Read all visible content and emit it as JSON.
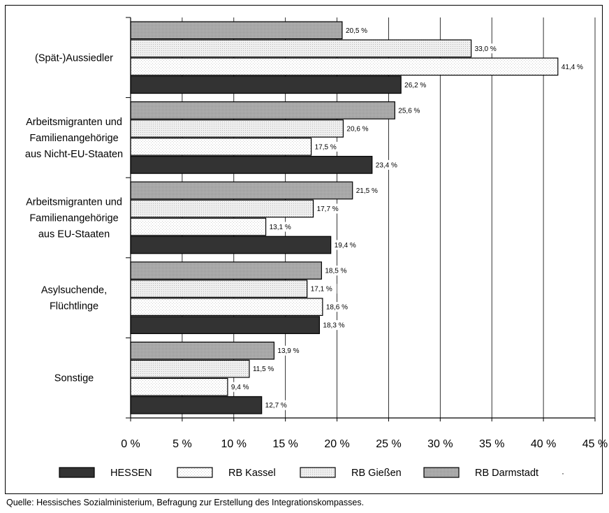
{
  "source_note": "Quelle: Hessisches Sozialministerium, Befragung zur Erstellung des Integrationskompasses.",
  "legend_stray_mark": "·",
  "colors": {
    "HESSEN": "#333333",
    "RB Kassel": "#ffffff",
    "RB Gießen": "#e6e6e6",
    "RB Darmstadt": "#a6a6a6"
  },
  "chart_data": {
    "type": "bar",
    "orientation": "horizontal",
    "title": "",
    "xlabel": "",
    "ylabel": "",
    "xlim": [
      0,
      45
    ],
    "xticks": [
      0,
      5,
      10,
      15,
      20,
      25,
      30,
      35,
      40,
      45
    ],
    "xtick_labels": [
      "0 %",
      "5 %",
      "10 %",
      "15 %",
      "20 %",
      "25 %",
      "30 %",
      "35 %",
      "40 %",
      "45 %"
    ],
    "grid": true,
    "legend_position": "bottom",
    "legend_order": [
      "HESSEN",
      "RB Kassel",
      "RB Gießen",
      "RB Darmstadt"
    ],
    "categories": [
      [
        "(Spät-)Aussiedler"
      ],
      [
        "Arbeitsmigranten und",
        "Familienangehörige",
        "aus Nicht-EU-Staaten"
      ],
      [
        "Arbeitsmigranten und",
        "Familienangehörige",
        "aus EU-Staaten"
      ],
      [
        "Asylsuchende,",
        "Flüchtlinge"
      ],
      [
        "Sonstige"
      ]
    ],
    "series": [
      {
        "name": "RB Darmstadt",
        "values": [
          20.5,
          25.6,
          21.5,
          18.5,
          13.9
        ],
        "labels": [
          "20,5 %",
          "25,6 %",
          "21,5 %",
          "18,5 %",
          "13,9 %"
        ]
      },
      {
        "name": "RB Gießen",
        "values": [
          33.0,
          20.6,
          17.7,
          17.1,
          11.5
        ],
        "labels": [
          "33,0 %",
          "20,6 %",
          "17,7 %",
          "17,1 %",
          "11,5 %"
        ]
      },
      {
        "name": "RB Kassel",
        "values": [
          41.4,
          17.5,
          13.1,
          18.6,
          9.4
        ],
        "labels": [
          "41,4 %",
          "17,5 %",
          "13,1 %",
          "18,6 %",
          "9,4 %"
        ]
      },
      {
        "name": "HESSEN",
        "values": [
          26.2,
          23.4,
          19.4,
          18.3,
          12.7
        ],
        "labels": [
          "26,2 %",
          "23,4 %",
          "19,4 %",
          "18,3 %",
          "12,7 %"
        ]
      }
    ]
  }
}
